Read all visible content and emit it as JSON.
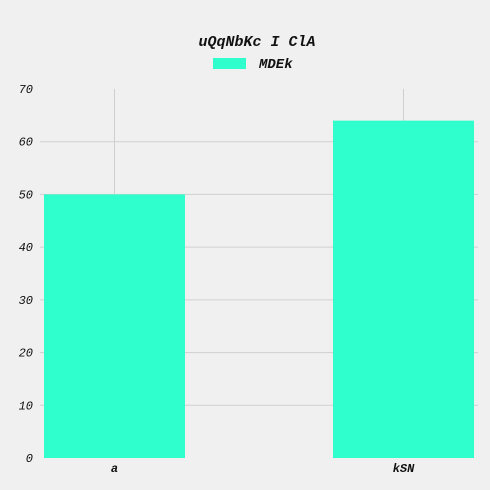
{
  "chart_data": {
    "type": "bar",
    "title": "uQqNbKc I ClA",
    "categories": [
      "a",
      "kSN"
    ],
    "series": [
      {
        "name": "MDEk",
        "values": [
          50,
          64
        ],
        "color": "#2effcc"
      }
    ],
    "xlabel": "",
    "ylabel": "",
    "ylim": [
      0,
      70
    ],
    "yticks": [
      0,
      10,
      20,
      30,
      40,
      50,
      60,
      70
    ],
    "grid": true,
    "legend_position": "top-center"
  }
}
